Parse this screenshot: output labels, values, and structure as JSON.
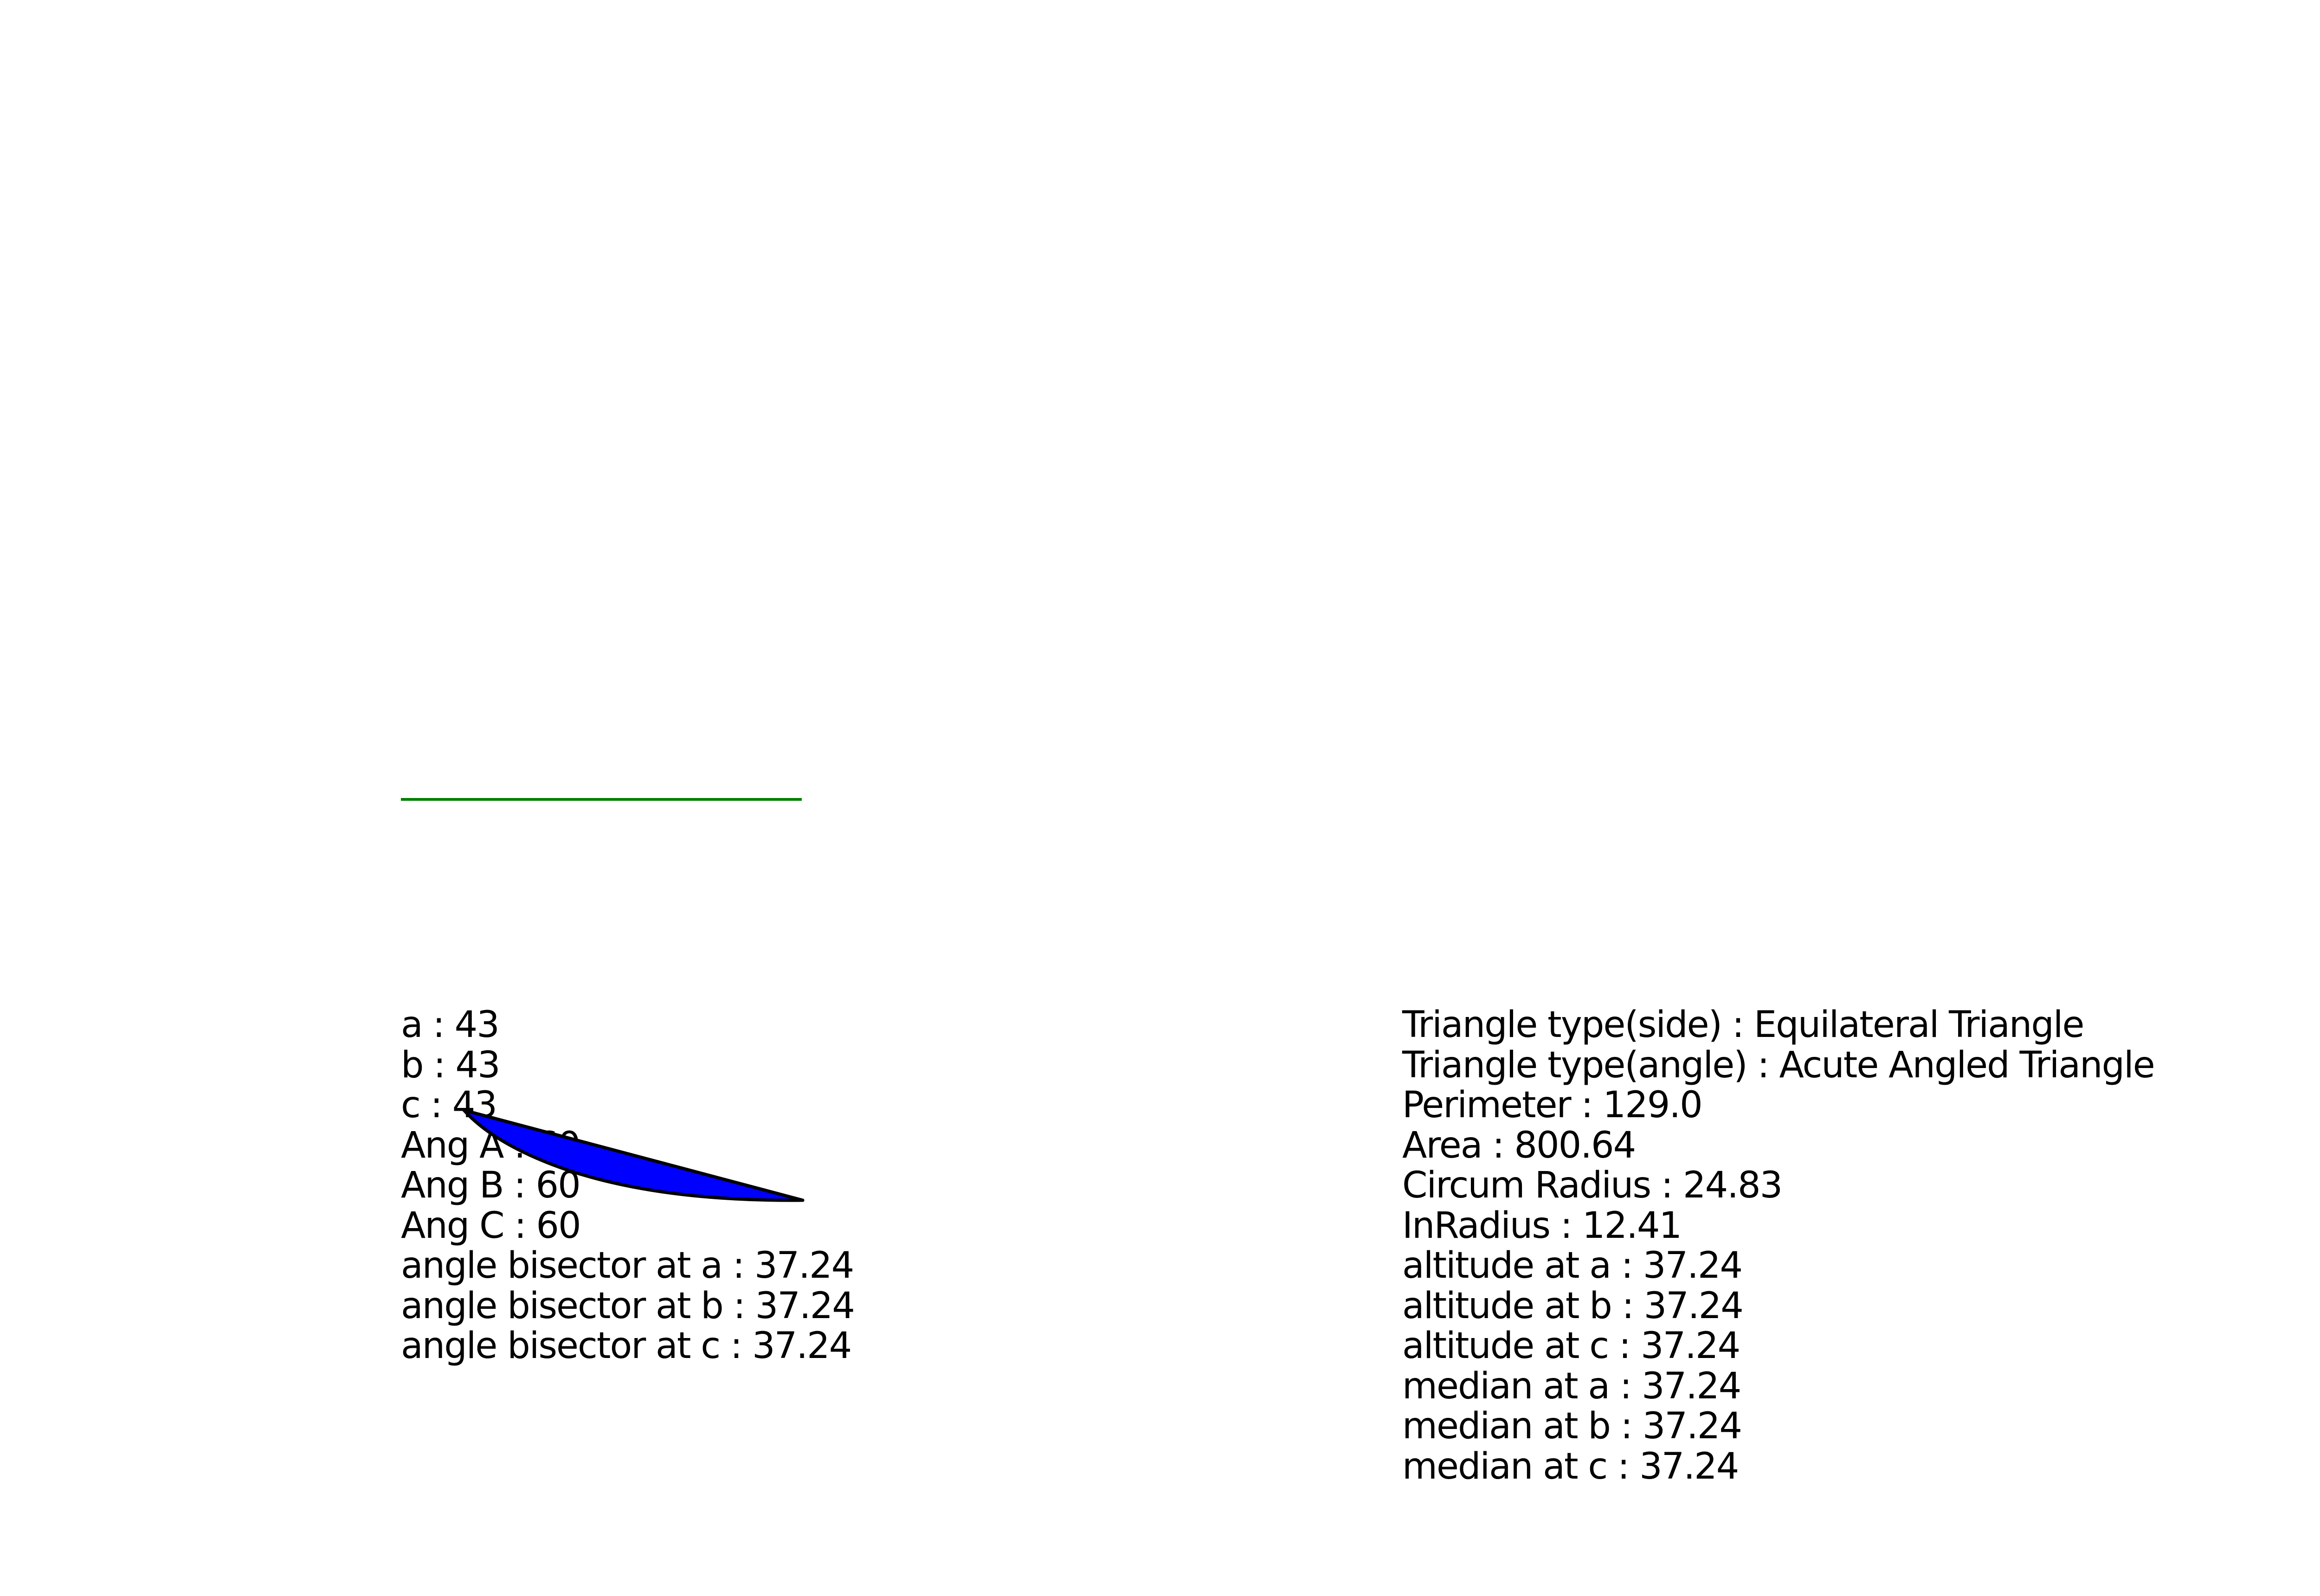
{
  "left_panel": {
    "lines": [
      "a : 43",
      "b : 43",
      "c : 43",
      "Ang A : 60",
      "Ang B : 60",
      "Ang C : 60",
      "angle bisector at a : 37.24",
      "angle bisector at b : 37.24",
      "angle bisector at c : 37.24"
    ]
  },
  "right_panel": {
    "lines": [
      "Triangle type(side) : Equilateral Triangle",
      "Triangle type(angle) : Acute Angled Triangle",
      "Perimeter : 129.0",
      "Area : 800.64",
      "Circum Radius : 24.83",
      "InRadius : 12.41",
      "altitude at a : 37.24",
      "altitude at b : 37.24",
      "altitude at c : 37.24",
      "median at a : 37.24",
      "median at b : 37.24",
      "median at c : 37.24"
    ]
  },
  "colors": {
    "line": "#008000",
    "shape_fill": "#0000ff",
    "shape_stroke": "#000000"
  }
}
